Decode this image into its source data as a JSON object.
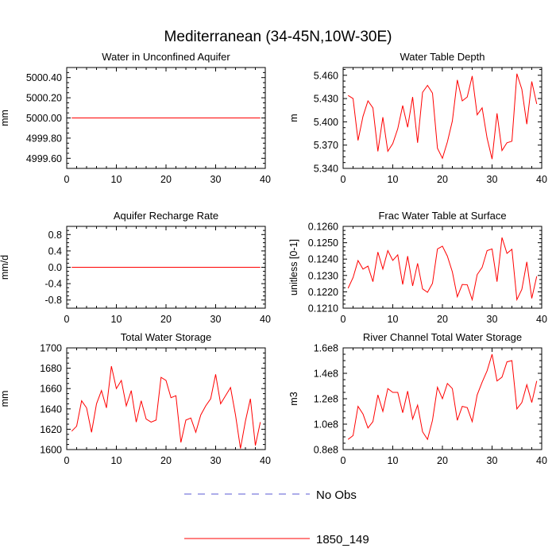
{
  "figure": {
    "title": "Mediterranean (34-45N,10W-30E)"
  },
  "legend": {
    "items": [
      {
        "label": "No Obs",
        "color": "#5b5bd6",
        "style": "dashed"
      },
      {
        "label": "1850_149",
        "color": "#ff0000",
        "style": "solid"
      }
    ]
  },
  "chart_data": [
    {
      "type": "line",
      "title": "Water in Unconfined Aquifer",
      "ylabel": "mm",
      "xlim": [
        0,
        40
      ],
      "ylim": [
        4999.5,
        5000.5
      ],
      "xticks": [
        0,
        10,
        20,
        30,
        40
      ],
      "xticklabels": [
        "0",
        "10",
        "20",
        "30",
        "40"
      ],
      "yticks": [
        4999.6,
        4999.8,
        5000.0,
        5000.2,
        5000.4
      ],
      "yticklabels": [
        "4999.60",
        "4999.80",
        "5000.00",
        "5000.20",
        "5000.40"
      ],
      "series": [
        {
          "name": "1850_149",
          "color": "#ff0000",
          "x": [
            1,
            2,
            3,
            4,
            5,
            6,
            7,
            8,
            9,
            10,
            11,
            12,
            13,
            14,
            15,
            16,
            17,
            18,
            19,
            20,
            21,
            22,
            23,
            24,
            25,
            26,
            27,
            28,
            29,
            30,
            31,
            32,
            33,
            34,
            35,
            36,
            37,
            38,
            39
          ],
          "y": [
            5000,
            5000,
            5000,
            5000,
            5000,
            5000,
            5000,
            5000,
            5000,
            5000,
            5000,
            5000,
            5000,
            5000,
            5000,
            5000,
            5000,
            5000,
            5000,
            5000,
            5000,
            5000,
            5000,
            5000,
            5000,
            5000,
            5000,
            5000,
            5000,
            5000,
            5000,
            5000,
            5000,
            5000,
            5000,
            5000,
            5000,
            5000,
            5000
          ]
        }
      ]
    },
    {
      "type": "line",
      "title": "Water Table Depth",
      "ylabel": "m",
      "xlim": [
        0,
        40
      ],
      "ylim": [
        5.34,
        5.47
      ],
      "xticks": [
        0,
        10,
        20,
        30,
        40
      ],
      "xticklabels": [
        "0",
        "10",
        "20",
        "30",
        "40"
      ],
      "yticks": [
        5.34,
        5.37,
        5.4,
        5.43,
        5.46
      ],
      "yticklabels": [
        "5.340",
        "5.370",
        "5.400",
        "5.430",
        "5.460"
      ],
      "series": [
        {
          "name": "1850_149",
          "color": "#ff0000",
          "x": [
            1,
            2,
            3,
            4,
            5,
            6,
            7,
            8,
            9,
            10,
            11,
            12,
            13,
            14,
            15,
            16,
            17,
            18,
            19,
            20,
            21,
            22,
            23,
            24,
            25,
            26,
            27,
            28,
            29,
            30,
            31,
            32,
            33,
            34,
            35,
            36,
            37,
            38,
            39
          ],
          "y": [
            5.434,
            5.43,
            5.376,
            5.407,
            5.427,
            5.418,
            5.362,
            5.406,
            5.362,
            5.372,
            5.391,
            5.421,
            5.393,
            5.432,
            5.373,
            5.438,
            5.447,
            5.437,
            5.366,
            5.353,
            5.374,
            5.401,
            5.454,
            5.427,
            5.432,
            5.459,
            5.409,
            5.418,
            5.379,
            5.352,
            5.411,
            5.363,
            5.373,
            5.375,
            5.462,
            5.442,
            5.397,
            5.452,
            5.423
          ]
        }
      ]
    },
    {
      "type": "line",
      "title": "Aquifer Recharge Rate",
      "ylabel": "mm/d",
      "xlim": [
        0,
        40
      ],
      "ylim": [
        -1.0,
        1.0
      ],
      "xticks": [
        0,
        10,
        20,
        30,
        40
      ],
      "xticklabels": [
        "0",
        "10",
        "20",
        "30",
        "40"
      ],
      "yticks": [
        -0.8,
        -0.4,
        0.0,
        0.4,
        0.8
      ],
      "yticklabels": [
        "-0.8",
        "-0.4",
        "0.0",
        "0.4",
        "0.8"
      ],
      "series": [
        {
          "name": "1850_149",
          "color": "#ff0000",
          "x": [
            1,
            2,
            3,
            4,
            5,
            6,
            7,
            8,
            9,
            10,
            11,
            12,
            13,
            14,
            15,
            16,
            17,
            18,
            19,
            20,
            21,
            22,
            23,
            24,
            25,
            26,
            27,
            28,
            29,
            30,
            31,
            32,
            33,
            34,
            35,
            36,
            37,
            38,
            39
          ],
          "y": [
            0,
            0,
            0,
            0,
            0,
            0,
            0,
            0,
            0,
            0,
            0,
            0,
            0,
            0,
            0,
            0,
            0,
            0,
            0,
            0,
            0,
            0,
            0,
            0,
            0,
            0,
            0,
            0,
            0,
            0,
            0,
            0,
            0,
            0,
            0,
            0,
            0,
            0,
            0
          ]
        }
      ]
    },
    {
      "type": "line",
      "title": "Frac Water Table at Surface",
      "ylabel": "unitless [0-1]",
      "xlim": [
        0,
        40
      ],
      "ylim": [
        0.121,
        0.126
      ],
      "xticks": [
        0,
        10,
        20,
        30,
        40
      ],
      "xticklabels": [
        "0",
        "10",
        "20",
        "30",
        "40"
      ],
      "yticks": [
        0.121,
        0.122,
        0.123,
        0.124,
        0.125,
        0.126
      ],
      "yticklabels": [
        "0.1210",
        "0.1220",
        "0.1230",
        "0.1240",
        "0.1250",
        "0.1260"
      ],
      "series": [
        {
          "name": "1850_149",
          "color": "#ff0000",
          "x": [
            1,
            2,
            3,
            4,
            5,
            6,
            7,
            8,
            9,
            10,
            11,
            12,
            13,
            14,
            15,
            16,
            17,
            18,
            19,
            20,
            21,
            22,
            23,
            24,
            25,
            26,
            27,
            28,
            29,
            30,
            31,
            32,
            33,
            34,
            35,
            36,
            37,
            38,
            39
          ],
          "y": [
            0.12222,
            0.12287,
            0.12391,
            0.12339,
            0.12357,
            0.12262,
            0.12443,
            0.12339,
            0.12452,
            0.12392,
            0.12426,
            0.12245,
            0.12418,
            0.12236,
            0.12374,
            0.12218,
            0.12197,
            0.12252,
            0.12462,
            0.12479,
            0.12418,
            0.12322,
            0.1217,
            0.12245,
            0.12243,
            0.12152,
            0.12305,
            0.12349,
            0.12452,
            0.12462,
            0.12262,
            0.12532,
            0.12435,
            0.1246,
            0.12152,
            0.12215,
            0.12383,
            0.1216,
            0.12295
          ]
        }
      ]
    },
    {
      "type": "line",
      "title": "Total Water Storage",
      "ylabel": "mm",
      "xlim": [
        0,
        40
      ],
      "ylim": [
        1600,
        1700
      ],
      "xticks": [
        0,
        10,
        20,
        30,
        40
      ],
      "xticklabels": [
        "0",
        "10",
        "20",
        "30",
        "40"
      ],
      "yticks": [
        1600,
        1620,
        1640,
        1660,
        1680,
        1700
      ],
      "yticklabels": [
        "1600",
        "1620",
        "1640",
        "1660",
        "1680",
        "1700"
      ],
      "series": [
        {
          "name": "1850_149",
          "color": "#ff0000",
          "x": [
            1,
            2,
            3,
            4,
            5,
            6,
            7,
            8,
            9,
            10,
            11,
            12,
            13,
            14,
            15,
            16,
            17,
            18,
            19,
            20,
            21,
            22,
            23,
            24,
            25,
            26,
            27,
            28,
            29,
            30,
            31,
            32,
            33,
            34,
            35,
            36,
            37,
            38,
            39
          ],
          "y": [
            1618,
            1623,
            1648,
            1641,
            1617,
            1645,
            1658,
            1641,
            1682,
            1660,
            1668,
            1643,
            1658,
            1627,
            1648,
            1630,
            1627,
            1629,
            1671,
            1668,
            1651,
            1653,
            1607,
            1629,
            1631,
            1617,
            1634,
            1643,
            1650,
            1674,
            1645,
            1653,
            1661,
            1634,
            1601,
            1628,
            1650,
            1604,
            1627
          ]
        }
      ]
    },
    {
      "type": "line",
      "title": "River Channel Total Water Storage",
      "ylabel": "m3",
      "xlim": [
        0,
        40
      ],
      "ylim": [
        80000000,
        160000000
      ],
      "xticks": [
        0,
        10,
        20,
        30,
        40
      ],
      "xticklabels": [
        "0",
        "10",
        "20",
        "30",
        "40"
      ],
      "yticks": [
        80000000,
        100000000,
        120000000,
        140000000,
        160000000
      ],
      "yticklabels": [
        "0.8e8",
        "1.0e8",
        "1.2e8",
        "1.4e8",
        "1.6e8"
      ],
      "series": [
        {
          "name": "1850_149",
          "color": "#ff0000",
          "x": [
            1,
            2,
            3,
            4,
            5,
            6,
            7,
            8,
            9,
            10,
            11,
            12,
            13,
            14,
            15,
            16,
            17,
            18,
            19,
            20,
            21,
            22,
            23,
            24,
            25,
            26,
            27,
            28,
            29,
            30,
            31,
            32,
            33,
            34,
            35,
            36,
            37,
            38,
            39
          ],
          "y": [
            88000000,
            91000000,
            114000000,
            108000000,
            97000000,
            102000000,
            123000000,
            110000000,
            128000000,
            125000000,
            125000000,
            109000000,
            126000000,
            104000000,
            115000000,
            94000000,
            88000000,
            103000000,
            129000000,
            120000000,
            132000000,
            128000000,
            103000000,
            114000000,
            113000000,
            102000000,
            123000000,
            133000000,
            142000000,
            155000000,
            134000000,
            137000000,
            149000000,
            150000000,
            112000000,
            117000000,
            131000000,
            117000000,
            134000000
          ]
        }
      ]
    }
  ]
}
